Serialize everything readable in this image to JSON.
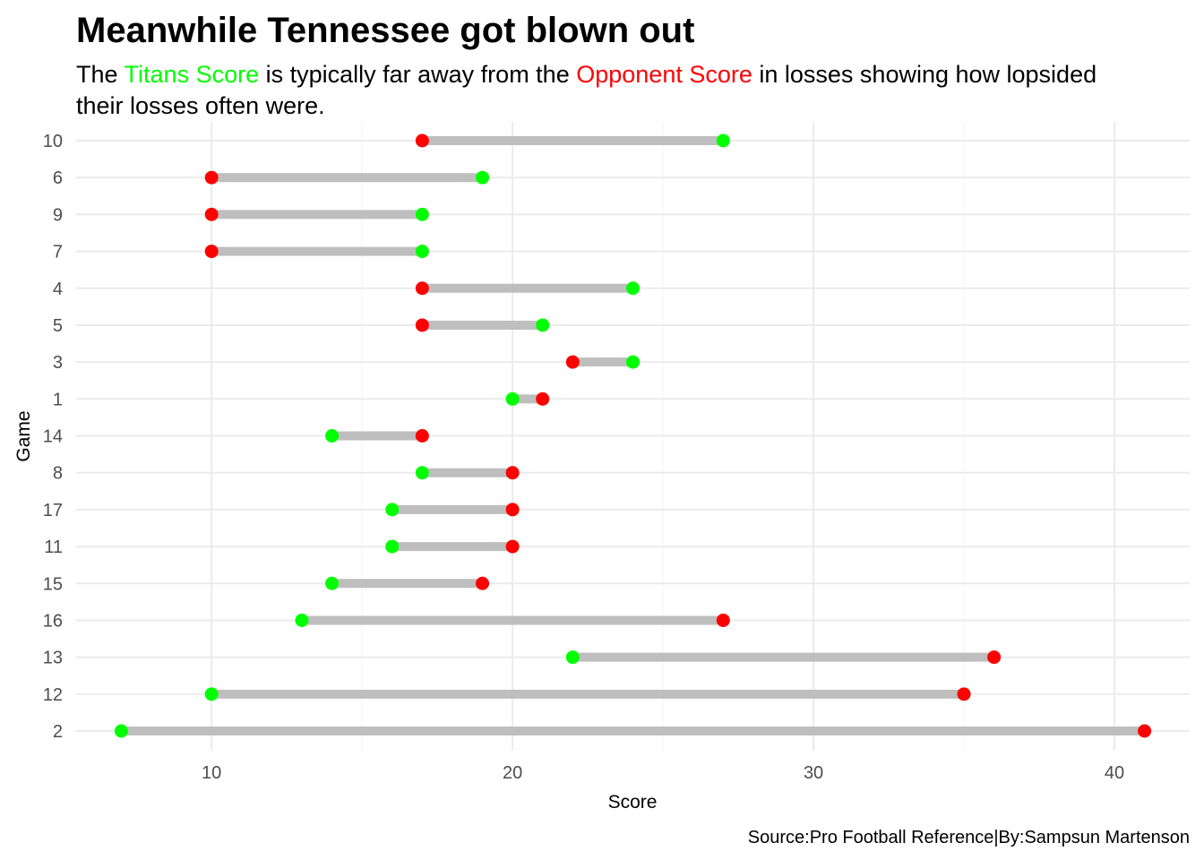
{
  "title": "Meanwhile Tennessee got blown out",
  "subtitle": {
    "line1_pre": "The ",
    "titans_label": "Titans Score",
    "line1_mid": " is typically far away from the ",
    "opponent_label": "Opponent Score",
    "line1_post": " in losses showing how lopsided",
    "line2": "their losses often were."
  },
  "caption": "Source:Pro Football Reference|By:Sampsun Martenson",
  "colors": {
    "titans": "#00ff00",
    "opponent": "#ff0000",
    "segment": "#bebebe",
    "grid": "#ebebeb"
  },
  "chart_data": {
    "type": "dumbbell",
    "xlabel": "Score",
    "ylabel": "Game",
    "xlim": [
      5.5,
      42.5
    ],
    "x_ticks": [
      10,
      20,
      30,
      40
    ],
    "grid": true,
    "series": [
      {
        "name": "Titans Score",
        "color": "#00ff00"
      },
      {
        "name": "Opponent Score",
        "color": "#ff0000"
      }
    ],
    "rows": [
      {
        "game": "10",
        "titans": 27,
        "opponent": 17
      },
      {
        "game": "6",
        "titans": 19,
        "opponent": 10
      },
      {
        "game": "9",
        "titans": 17,
        "opponent": 10
      },
      {
        "game": "7",
        "titans": 17,
        "opponent": 10
      },
      {
        "game": "4",
        "titans": 24,
        "opponent": 17
      },
      {
        "game": "5",
        "titans": 21,
        "opponent": 17
      },
      {
        "game": "3",
        "titans": 24,
        "opponent": 22
      },
      {
        "game": "1",
        "titans": 20,
        "opponent": 21
      },
      {
        "game": "14",
        "titans": 14,
        "opponent": 17
      },
      {
        "game": "8",
        "titans": 17,
        "opponent": 20
      },
      {
        "game": "17",
        "titans": 16,
        "opponent": 20
      },
      {
        "game": "11",
        "titans": 16,
        "opponent": 20
      },
      {
        "game": "15",
        "titans": 14,
        "opponent": 19
      },
      {
        "game": "16",
        "titans": 13,
        "opponent": 27
      },
      {
        "game": "13",
        "titans": 22,
        "opponent": 36
      },
      {
        "game": "12",
        "titans": 10,
        "opponent": 35
      },
      {
        "game": "2",
        "titans": 7,
        "opponent": 41
      }
    ]
  }
}
